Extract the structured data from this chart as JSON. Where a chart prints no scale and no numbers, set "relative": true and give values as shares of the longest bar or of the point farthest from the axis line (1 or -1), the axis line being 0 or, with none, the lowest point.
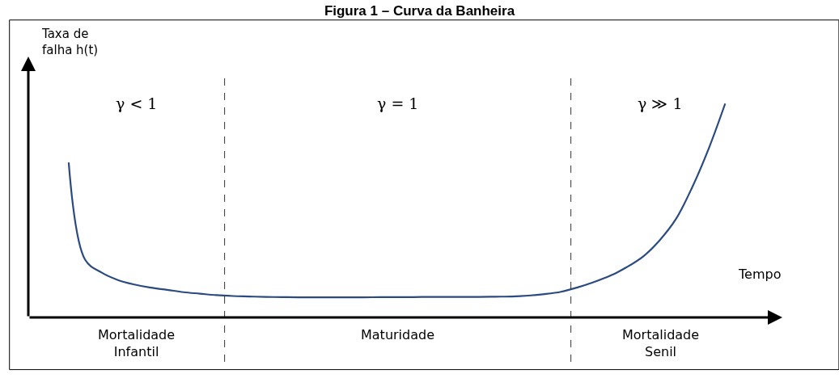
{
  "chart_data": {
    "type": "line",
    "relative": true,
    "title": "Figura 1 – Curva da Banheira",
    "xlabel": "Tempo",
    "ylabel": "Taxa de\nfalha h(t)",
    "categories": [
      null,
      null,
      null,
      null,
      null,
      null,
      null,
      null,
      null,
      null,
      null,
      null,
      null,
      null,
      null,
      null,
      null,
      null,
      null,
      null,
      null,
      null,
      null,
      null,
      null,
      null,
      null,
      null,
      null,
      null,
      null,
      null,
      null,
      null,
      null,
      null,
      null,
      null,
      null,
      null,
      null
    ],
    "series": [
      {
        "color": "#2a4a80",
        "values": [
          0.725,
          0.27,
          0.21,
          0.175,
          0.154,
          0.139,
          0.129,
          0.118,
          0.111,
          0.104,
          0.1,
          0.098,
          0.096,
          0.095,
          0.094,
          0.094,
          0.094,
          0.094,
          0.094,
          0.095,
          0.095,
          0.095,
          0.096,
          0.096,
          0.096,
          0.096,
          0.097,
          0.098,
          0.102,
          0.109,
          0.12,
          0.14,
          0.165,
          0.195,
          0.235,
          0.285,
          0.36,
          0.46,
          0.61,
          0.79,
          1.0
        ]
      }
    ],
    "annotations": [
      "γ < 1",
      "γ = 1",
      "γ ≫ 1",
      "Mortalidade\nInfantil",
      "Maturidade",
      "Mortalidade\nSenil"
    ],
    "line_style": "solid",
    "marker": "none"
  }
}
